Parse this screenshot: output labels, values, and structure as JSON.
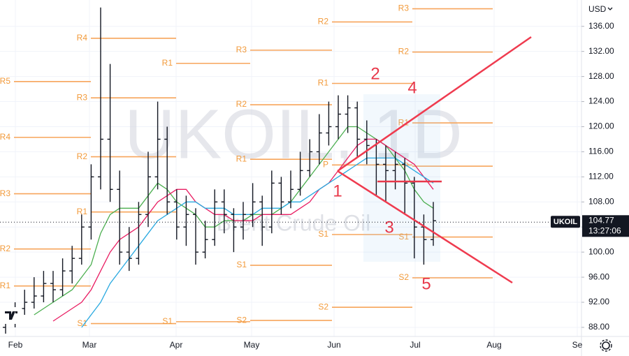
{
  "chart_data": {
    "type": "ohlc",
    "currency": "USD",
    "symbol": "UKOIL",
    "last_price": {
      "value": 104.77,
      "label": "104.77"
    },
    "countdown": "13:27:06",
    "watermark": "UKOIL, 1D",
    "subtitle": "Brent Crude Oil",
    "months": [
      "Feb",
      "Mar",
      "Apr",
      "May",
      "Jun",
      "Jul",
      "Aug",
      "Se"
    ],
    "ylim": [
      86.55,
      140.2
    ],
    "yticks": [
      {
        "value": 88,
        "label": "88.00"
      },
      {
        "value": 92,
        "label": "92.00"
      },
      {
        "value": 96,
        "label": "96.00"
      },
      {
        "value": 100,
        "label": "100.00"
      },
      {
        "value": 104,
        "label": "104.00"
      },
      {
        "value": 108,
        "label": "108.00"
      },
      {
        "value": 112,
        "label": "112.00"
      },
      {
        "value": 116,
        "label": "116.00"
      },
      {
        "value": 120,
        "label": "120.00"
      },
      {
        "value": 124,
        "label": "124.00"
      },
      {
        "value": 128,
        "label": "128.00"
      },
      {
        "value": 132,
        "label": "132.00"
      },
      {
        "value": 136,
        "label": "136.00"
      }
    ],
    "grid": true,
    "bars": {
      "open": [
        88,
        89,
        91,
        92,
        93,
        95,
        94,
        97,
        99,
        104,
        112,
        118,
        110,
        100,
        99,
        106,
        112,
        118,
        108,
        104,
        106,
        100,
        102,
        108,
        106,
        104,
        106,
        108,
        104,
        111,
        108,
        110,
        113,
        116,
        119,
        120,
        122,
        123,
        118,
        117,
        114,
        113,
        114,
        111,
        104,
        102
      ],
      "high": [
        91,
        92,
        94,
        96,
        97,
        97,
        99,
        101,
        106,
        114,
        139,
        130,
        113,
        104,
        108,
        116,
        124,
        120,
        110,
        109,
        107,
        105,
        110,
        110,
        107,
        108,
        111,
        109,
        113,
        112,
        113,
        116,
        118,
        122,
        124,
        125,
        125,
        124,
        121,
        118,
        117,
        116,
        115,
        112,
        106,
        108
      ],
      "low": [
        87,
        88,
        90,
        91,
        92,
        92,
        93,
        95,
        98,
        102,
        110,
        108,
        98,
        97,
        98,
        104,
        110,
        106,
        102,
        101,
        98,
        99,
        101,
        103,
        100,
        102,
        104,
        101,
        103,
        106,
        107,
        109,
        112,
        114,
        117,
        118,
        119,
        115,
        114,
        109,
        108,
        110,
        106,
        99,
        98,
        101
      ],
      "close": [
        89,
        91,
        92,
        93,
        95,
        94,
        97,
        99,
        104,
        112,
        118,
        110,
        100,
        99,
        106,
        112,
        118,
        108,
        104,
        106,
        100,
        102,
        108,
        106,
        104,
        106,
        108,
        104,
        111,
        108,
        110,
        113,
        116,
        119,
        120,
        122,
        123,
        118,
        117,
        114,
        113,
        114,
        111,
        104,
        102,
        105
      ]
    },
    "series": [
      {
        "color": "#4caf50",
        "values": [
          null,
          null,
          null,
          90,
          91,
          92,
          93,
          94,
          96,
          98,
          103,
          106,
          107,
          107,
          107,
          109,
          111,
          110,
          108,
          107,
          106,
          104,
          104,
          105,
          105,
          105,
          106,
          106,
          106,
          107,
          108,
          110,
          112,
          114,
          116,
          118,
          120,
          120,
          119,
          118,
          117,
          115,
          113,
          110,
          108,
          107
        ]
      },
      {
        "color": "#e91e63",
        "values": [
          null,
          null,
          null,
          null,
          null,
          89,
          90,
          91,
          92,
          94,
          97,
          100,
          102,
          103,
          104,
          106,
          108,
          109,
          110,
          110,
          108,
          107,
          106,
          106,
          105,
          105,
          105,
          106,
          106,
          106,
          106,
          107,
          108,
          110,
          111,
          113,
          115,
          117,
          118,
          118,
          117,
          116,
          115,
          114,
          112,
          110
        ]
      },
      {
        "color": "#29a9e0",
        "values": [
          null,
          null,
          null,
          null,
          null,
          null,
          null,
          null,
          88,
          90,
          92,
          95,
          97,
          99,
          101,
          103,
          105,
          106,
          107,
          108,
          108,
          107,
          107,
          107,
          106,
          106,
          106,
          107,
          107,
          107,
          108,
          108,
          109,
          110,
          111,
          112,
          113,
          114,
          115,
          115,
          115,
          115,
          114,
          113,
          112,
          111
        ]
      }
    ],
    "pivots": [
      {
        "levels": [
          {
            "label": "R5",
            "value": 127.2
          },
          {
            "label": "R4",
            "value": 118.3
          },
          {
            "label": "R3",
            "value": 109.3
          },
          {
            "label": "R2",
            "value": 100.5
          },
          {
            "label": "R1",
            "value": 94.6
          }
        ]
      },
      {
        "levels": [
          {
            "label": "R4",
            "value": 134.1
          },
          {
            "label": "R3",
            "value": 124.6
          },
          {
            "label": "R2",
            "value": 115.2
          },
          {
            "label": "R1",
            "value": 106.4
          },
          {
            "label": "S1",
            "value": 88.6
          }
        ]
      },
      {
        "levels": [
          {
            "label": "R1",
            "value": 130.1
          },
          {
            "label": "S1",
            "value": 88.9
          }
        ]
      },
      {
        "levels": [
          {
            "label": "R3",
            "value": 132.2
          },
          {
            "label": "R2",
            "value": 123.5
          },
          {
            "label": "R1",
            "value": 114.8
          },
          {
            "label": "S1",
            "value": 97.9
          },
          {
            "label": "S2",
            "value": 89.1
          }
        ]
      },
      {
        "levels": [
          {
            "label": "R2",
            "value": 136.7
          },
          {
            "label": "R1",
            "value": 126.9
          },
          {
            "label": "P",
            "value": 113.9
          },
          {
            "label": "S1",
            "value": 102.8
          },
          {
            "label": "S2",
            "value": 91.2
          }
        ]
      },
      {
        "levels": [
          {
            "label": "R3",
            "value": 138.8
          },
          {
            "label": "R2",
            "value": 131.9
          },
          {
            "label": "R1",
            "value": 120.6
          },
          {
            "label": "P",
            "value": 113.7
          },
          {
            "label": "S1",
            "value": 102.4
          },
          {
            "label": "S2",
            "value": 95.9
          }
        ]
      }
    ],
    "annotations": [
      "1",
      "2",
      "3",
      "4",
      "5"
    ]
  }
}
